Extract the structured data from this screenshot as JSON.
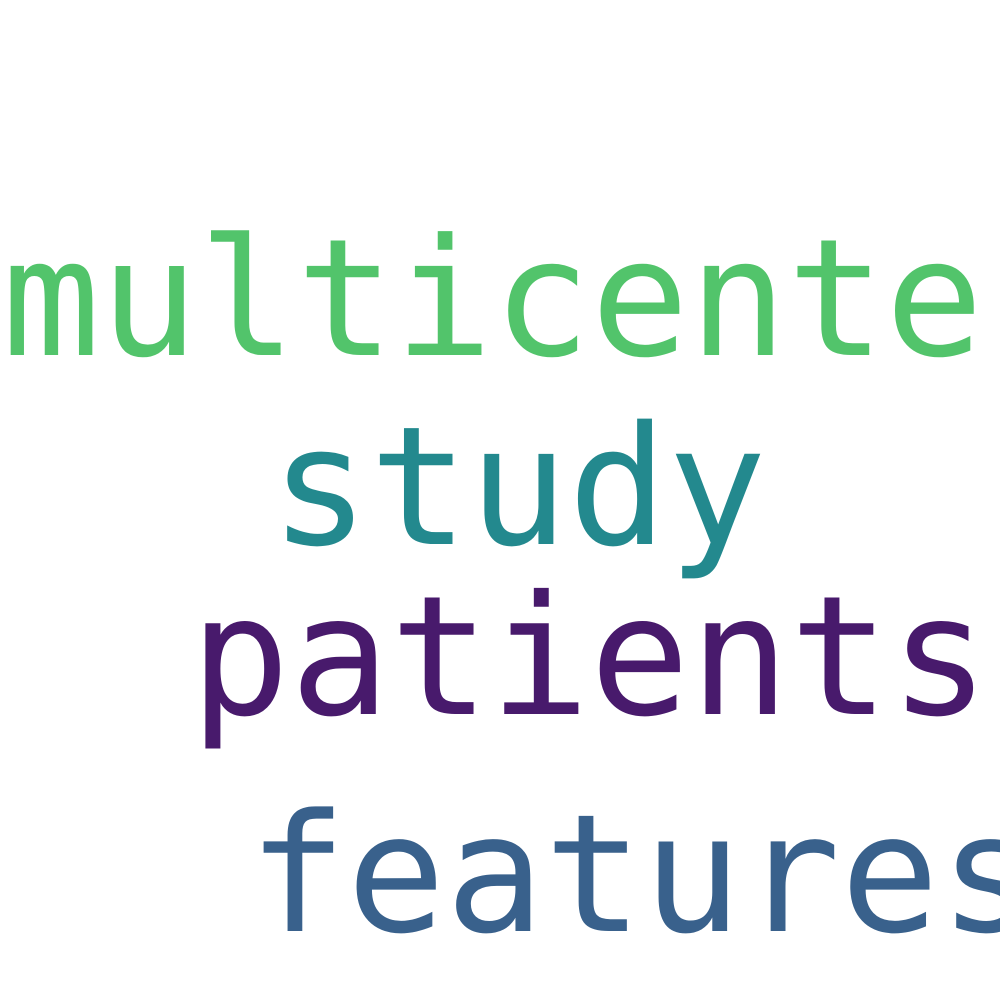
{
  "words": [
    {
      "text": "multicenter",
      "color": "#52c46b"
    },
    {
      "text": "study",
      "color": "#23898e"
    },
    {
      "text": "patients",
      "color": "#481a6c"
    },
    {
      "text": "features",
      "color": "#39618c"
    }
  ]
}
